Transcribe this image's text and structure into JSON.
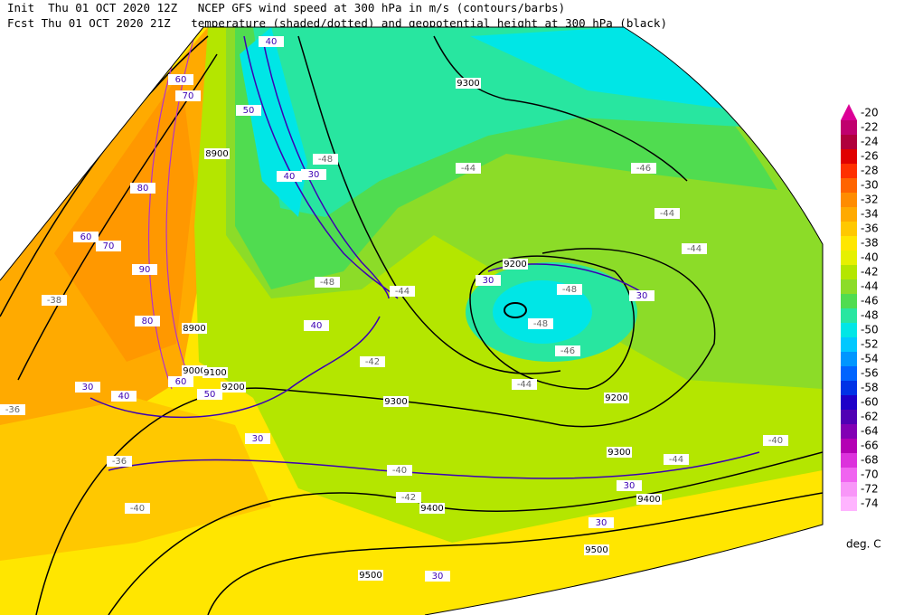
{
  "header": {
    "lines": [
      "Init  Thu 01 OCT 2020 12Z   NCEP GFS wind speed at 300 hPa in m/s (contours/barbs)",
      "Fcst Thu 01 OCT 2020 21Z   temperature (shaded/dotted) and geopotential height at 300 hPa (black)"
    ]
  },
  "colorbar": {
    "levels": [
      -20,
      -22,
      -24,
      -26,
      -28,
      -30,
      -32,
      -34,
      -36,
      -38,
      -40,
      -42,
      -44,
      -46,
      -48,
      -50,
      -52,
      -54,
      -56,
      -58,
      -60,
      -62,
      -64,
      -66,
      -68,
      -70,
      -72,
      -74
    ],
    "colors": [
      "#dc0096",
      "#c0006e",
      "#b0003c",
      "#e00000",
      "#ff3000",
      "#ff6400",
      "#ff8c00",
      "#ffaa00",
      "#ffc800",
      "#ffe600",
      "#e6f000",
      "#b4e600",
      "#8cdc28",
      "#50dc50",
      "#28e6a0",
      "#00e6e6",
      "#00c8ff",
      "#0096ff",
      "#0064ff",
      "#0032e6",
      "#1e00c8",
      "#5000b4",
      "#8200b4",
      "#b400b4",
      "#dc32dc",
      "#f064f0",
      "#f896f8",
      "#ffb4ff"
    ],
    "unit": "deg. C"
  },
  "height_labels": [
    "8900",
    "8900",
    "9000",
    "9100",
    "9200",
    "9200",
    "9200",
    "9300",
    "9300",
    "9300",
    "9400",
    "9400",
    "9500",
    "9500"
  ],
  "wind_labels": [
    "40",
    "60",
    "70",
    "50",
    "40",
    "30",
    "80",
    "60",
    "70",
    "90",
    "80",
    "40",
    "30",
    "30",
    "30",
    "40",
    "50",
    "60",
    "30",
    "30",
    "30",
    "30"
  ],
  "temperature_labels": [
    "-48",
    "-48",
    "-44",
    "-48",
    "-48",
    "-46",
    "-44",
    "-44",
    "-46",
    "-44",
    "-44",
    "-40",
    "-44",
    "-40",
    "-42",
    "-36",
    "-36",
    "-40",
    "-38",
    "-42"
  ]
}
